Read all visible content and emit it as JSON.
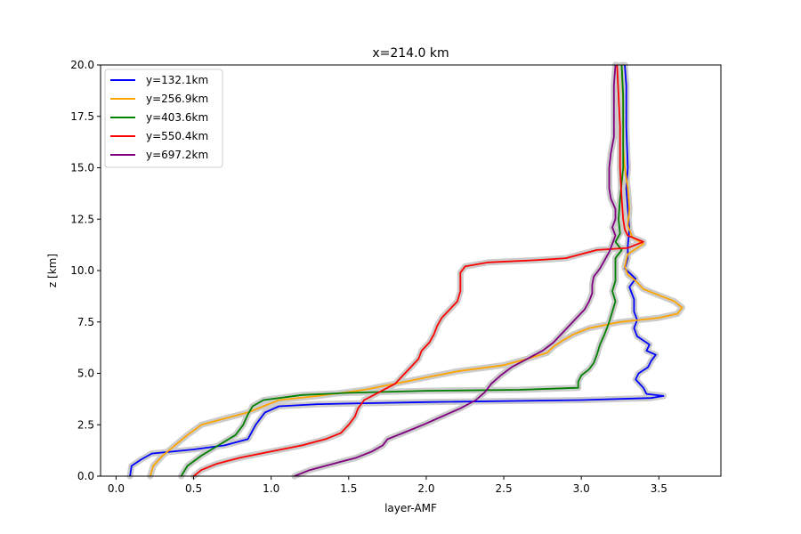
{
  "chart_data": {
    "type": "line",
    "title": "x=214.0 km",
    "xlabel": "layer-AMF",
    "ylabel": "z [km]",
    "xlim": [
      -0.1,
      3.9
    ],
    "ylim": [
      0,
      20
    ],
    "xticks": [
      0.0,
      0.5,
      1.0,
      1.5,
      2.0,
      2.5,
      3.0,
      3.5
    ],
    "xtick_labels": [
      "0.0",
      "0.5",
      "1.0",
      "1.5",
      "2.0",
      "2.5",
      "3.0",
      "3.5"
    ],
    "yticks": [
      0.0,
      2.5,
      5.0,
      7.5,
      10.0,
      12.5,
      15.0,
      17.5,
      20.0
    ],
    "ytick_labels": [
      "0.0",
      "2.5",
      "5.0",
      "7.5",
      "10.0",
      "12.5",
      "15.0",
      "17.5",
      "20.0"
    ],
    "grid": false,
    "legend_position": "top-left",
    "uncertainty_band_color": "#cccccc",
    "series": [
      {
        "name": "y=132.1km",
        "color": "#0000ff",
        "points": [
          [
            0.09,
            0
          ],
          [
            0.1,
            0.5
          ],
          [
            0.16,
            0.8
          ],
          [
            0.23,
            1.1
          ],
          [
            0.5,
            1.3
          ],
          [
            0.7,
            1.5
          ],
          [
            0.85,
            1.8
          ],
          [
            0.9,
            2.5
          ],
          [
            0.93,
            2.8
          ],
          [
            0.96,
            3.1
          ],
          [
            1.05,
            3.4
          ],
          [
            1.3,
            3.5
          ],
          [
            2.0,
            3.6
          ],
          [
            3.0,
            3.7
          ],
          [
            3.45,
            3.8
          ],
          [
            3.53,
            3.9
          ],
          [
            3.42,
            4.0
          ],
          [
            3.4,
            4.3
          ],
          [
            3.35,
            4.7
          ],
          [
            3.37,
            5.0
          ],
          [
            3.43,
            5.3
          ],
          [
            3.45,
            5.6
          ],
          [
            3.48,
            5.9
          ],
          [
            3.42,
            6.1
          ],
          [
            3.44,
            6.4
          ],
          [
            3.36,
            6.8
          ],
          [
            3.34,
            7.2
          ],
          [
            3.36,
            7.6
          ],
          [
            3.34,
            8.0
          ],
          [
            3.34,
            8.6
          ],
          [
            3.31,
            9.2
          ],
          [
            3.35,
            9.6
          ],
          [
            3.28,
            10.1
          ],
          [
            3.3,
            10.6
          ],
          [
            3.3,
            11.2
          ],
          [
            3.31,
            12.0
          ],
          [
            3.3,
            13.0
          ],
          [
            3.29,
            14.0
          ],
          [
            3.3,
            15.0
          ],
          [
            3.29,
            17.0
          ],
          [
            3.29,
            19.0
          ],
          [
            3.28,
            20.0
          ]
        ]
      },
      {
        "name": "y=256.9km",
        "color": "#ffa500",
        "points": [
          [
            0.22,
            0
          ],
          [
            0.24,
            0.5
          ],
          [
            0.3,
            1.0
          ],
          [
            0.38,
            1.5
          ],
          [
            0.46,
            2.0
          ],
          [
            0.55,
            2.5
          ],
          [
            0.7,
            2.8
          ],
          [
            0.85,
            3.1
          ],
          [
            0.95,
            3.4
          ],
          [
            1.05,
            3.7
          ],
          [
            1.3,
            3.9
          ],
          [
            1.6,
            4.2
          ],
          [
            1.8,
            4.5
          ],
          [
            2.0,
            4.8
          ],
          [
            2.2,
            5.1
          ],
          [
            2.5,
            5.4
          ],
          [
            2.65,
            5.7
          ],
          [
            2.78,
            6.0
          ],
          [
            2.82,
            6.3
          ],
          [
            2.88,
            6.6
          ],
          [
            2.95,
            6.9
          ],
          [
            3.05,
            7.2
          ],
          [
            3.25,
            7.5
          ],
          [
            3.5,
            7.7
          ],
          [
            3.62,
            7.9
          ],
          [
            3.65,
            8.2
          ],
          [
            3.6,
            8.5
          ],
          [
            3.5,
            8.8
          ],
          [
            3.4,
            9.1
          ],
          [
            3.35,
            9.5
          ],
          [
            3.3,
            9.8
          ],
          [
            3.28,
            10.2
          ],
          [
            3.3,
            10.8
          ],
          [
            3.4,
            11.3
          ],
          [
            3.33,
            11.6
          ],
          [
            3.3,
            12.2
          ],
          [
            3.31,
            13.0
          ],
          [
            3.3,
            14.0
          ],
          [
            3.28,
            15.0
          ],
          [
            3.27,
            16.0
          ],
          [
            3.27,
            18.0
          ],
          [
            3.26,
            20.0
          ]
        ]
      },
      {
        "name": "y=403.6km",
        "color": "#008000",
        "points": [
          [
            0.42,
            0
          ],
          [
            0.46,
            0.5
          ],
          [
            0.55,
            1.0
          ],
          [
            0.66,
            1.5
          ],
          [
            0.77,
            2.0
          ],
          [
            0.82,
            2.5
          ],
          [
            0.85,
            3.0
          ],
          [
            0.88,
            3.4
          ],
          [
            0.95,
            3.7
          ],
          [
            1.2,
            3.95
          ],
          [
            1.5,
            4.05
          ],
          [
            2.0,
            4.15
          ],
          [
            2.6,
            4.2
          ],
          [
            2.98,
            4.3
          ],
          [
            2.98,
            4.6
          ],
          [
            3.0,
            4.9
          ],
          [
            3.05,
            5.2
          ],
          [
            3.08,
            5.5
          ],
          [
            3.1,
            5.9
          ],
          [
            3.12,
            6.4
          ],
          [
            3.15,
            6.9
          ],
          [
            3.18,
            7.5
          ],
          [
            3.2,
            8.0
          ],
          [
            3.22,
            8.5
          ],
          [
            3.2,
            9.0
          ],
          [
            3.22,
            9.5
          ],
          [
            3.22,
            10.0
          ],
          [
            3.22,
            10.6
          ],
          [
            3.26,
            11.0
          ],
          [
            3.22,
            11.4
          ],
          [
            3.25,
            11.8
          ],
          [
            3.24,
            12.5
          ],
          [
            3.25,
            13.5
          ],
          [
            3.27,
            15.0
          ],
          [
            3.27,
            17.0
          ],
          [
            3.27,
            18.5
          ],
          [
            3.26,
            20.0
          ]
        ]
      },
      {
        "name": "y=550.4km",
        "color": "#ff0000",
        "points": [
          [
            0.5,
            0
          ],
          [
            0.55,
            0.3
          ],
          [
            0.65,
            0.6
          ],
          [
            0.8,
            0.9
          ],
          [
            1.0,
            1.2
          ],
          [
            1.2,
            1.5
          ],
          [
            1.35,
            1.8
          ],
          [
            1.45,
            2.1
          ],
          [
            1.5,
            2.5
          ],
          [
            1.54,
            2.9
          ],
          [
            1.56,
            3.3
          ],
          [
            1.6,
            3.7
          ],
          [
            1.7,
            4.1
          ],
          [
            1.8,
            4.5
          ],
          [
            1.85,
            4.9
          ],
          [
            1.9,
            5.3
          ],
          [
            1.95,
            5.7
          ],
          [
            1.97,
            6.1
          ],
          [
            2.02,
            6.5
          ],
          [
            2.05,
            6.9
          ],
          [
            2.07,
            7.3
          ],
          [
            2.1,
            7.7
          ],
          [
            2.15,
            8.1
          ],
          [
            2.2,
            8.5
          ],
          [
            2.22,
            9.0
          ],
          [
            2.22,
            9.5
          ],
          [
            2.22,
            9.9
          ],
          [
            2.25,
            10.2
          ],
          [
            2.4,
            10.4
          ],
          [
            2.7,
            10.5
          ],
          [
            2.9,
            10.6
          ],
          [
            3.0,
            10.8
          ],
          [
            3.1,
            11.0
          ],
          [
            3.3,
            11.1
          ],
          [
            3.4,
            11.4
          ],
          [
            3.3,
            11.7
          ],
          [
            3.28,
            12.0
          ],
          [
            3.27,
            12.5
          ],
          [
            3.26,
            13.5
          ],
          [
            3.25,
            15.0
          ],
          [
            3.25,
            17.0
          ],
          [
            3.24,
            18.5
          ],
          [
            3.23,
            20.0
          ]
        ]
      },
      {
        "name": "y=697.2km",
        "color": "#800080",
        "points": [
          [
            1.15,
            0
          ],
          [
            1.25,
            0.3
          ],
          [
            1.4,
            0.6
          ],
          [
            1.55,
            0.9
          ],
          [
            1.65,
            1.2
          ],
          [
            1.72,
            1.5
          ],
          [
            1.75,
            1.8
          ],
          [
            1.85,
            2.1
          ],
          [
            1.98,
            2.5
          ],
          [
            2.1,
            2.9
          ],
          [
            2.22,
            3.3
          ],
          [
            2.32,
            3.7
          ],
          [
            2.38,
            4.1
          ],
          [
            2.42,
            4.5
          ],
          [
            2.48,
            4.9
          ],
          [
            2.55,
            5.3
          ],
          [
            2.65,
            5.7
          ],
          [
            2.75,
            6.1
          ],
          [
            2.82,
            6.5
          ],
          [
            2.87,
            6.9
          ],
          [
            2.92,
            7.3
          ],
          [
            2.97,
            7.7
          ],
          [
            3.02,
            8.1
          ],
          [
            3.05,
            8.5
          ],
          [
            3.07,
            8.9
          ],
          [
            3.07,
            9.3
          ],
          [
            3.08,
            9.7
          ],
          [
            3.12,
            10.1
          ],
          [
            3.15,
            10.5
          ],
          [
            3.18,
            10.9
          ],
          [
            3.2,
            11.3
          ],
          [
            3.22,
            11.7
          ],
          [
            3.2,
            12.1
          ],
          [
            3.22,
            12.5
          ],
          [
            3.22,
            13.0
          ],
          [
            3.19,
            13.5
          ],
          [
            3.18,
            14.0
          ],
          [
            3.18,
            15.0
          ],
          [
            3.19,
            15.7
          ],
          [
            3.21,
            16.5
          ],
          [
            3.21,
            17.5
          ],
          [
            3.21,
            19.0
          ],
          [
            3.22,
            20.0
          ]
        ]
      }
    ]
  }
}
